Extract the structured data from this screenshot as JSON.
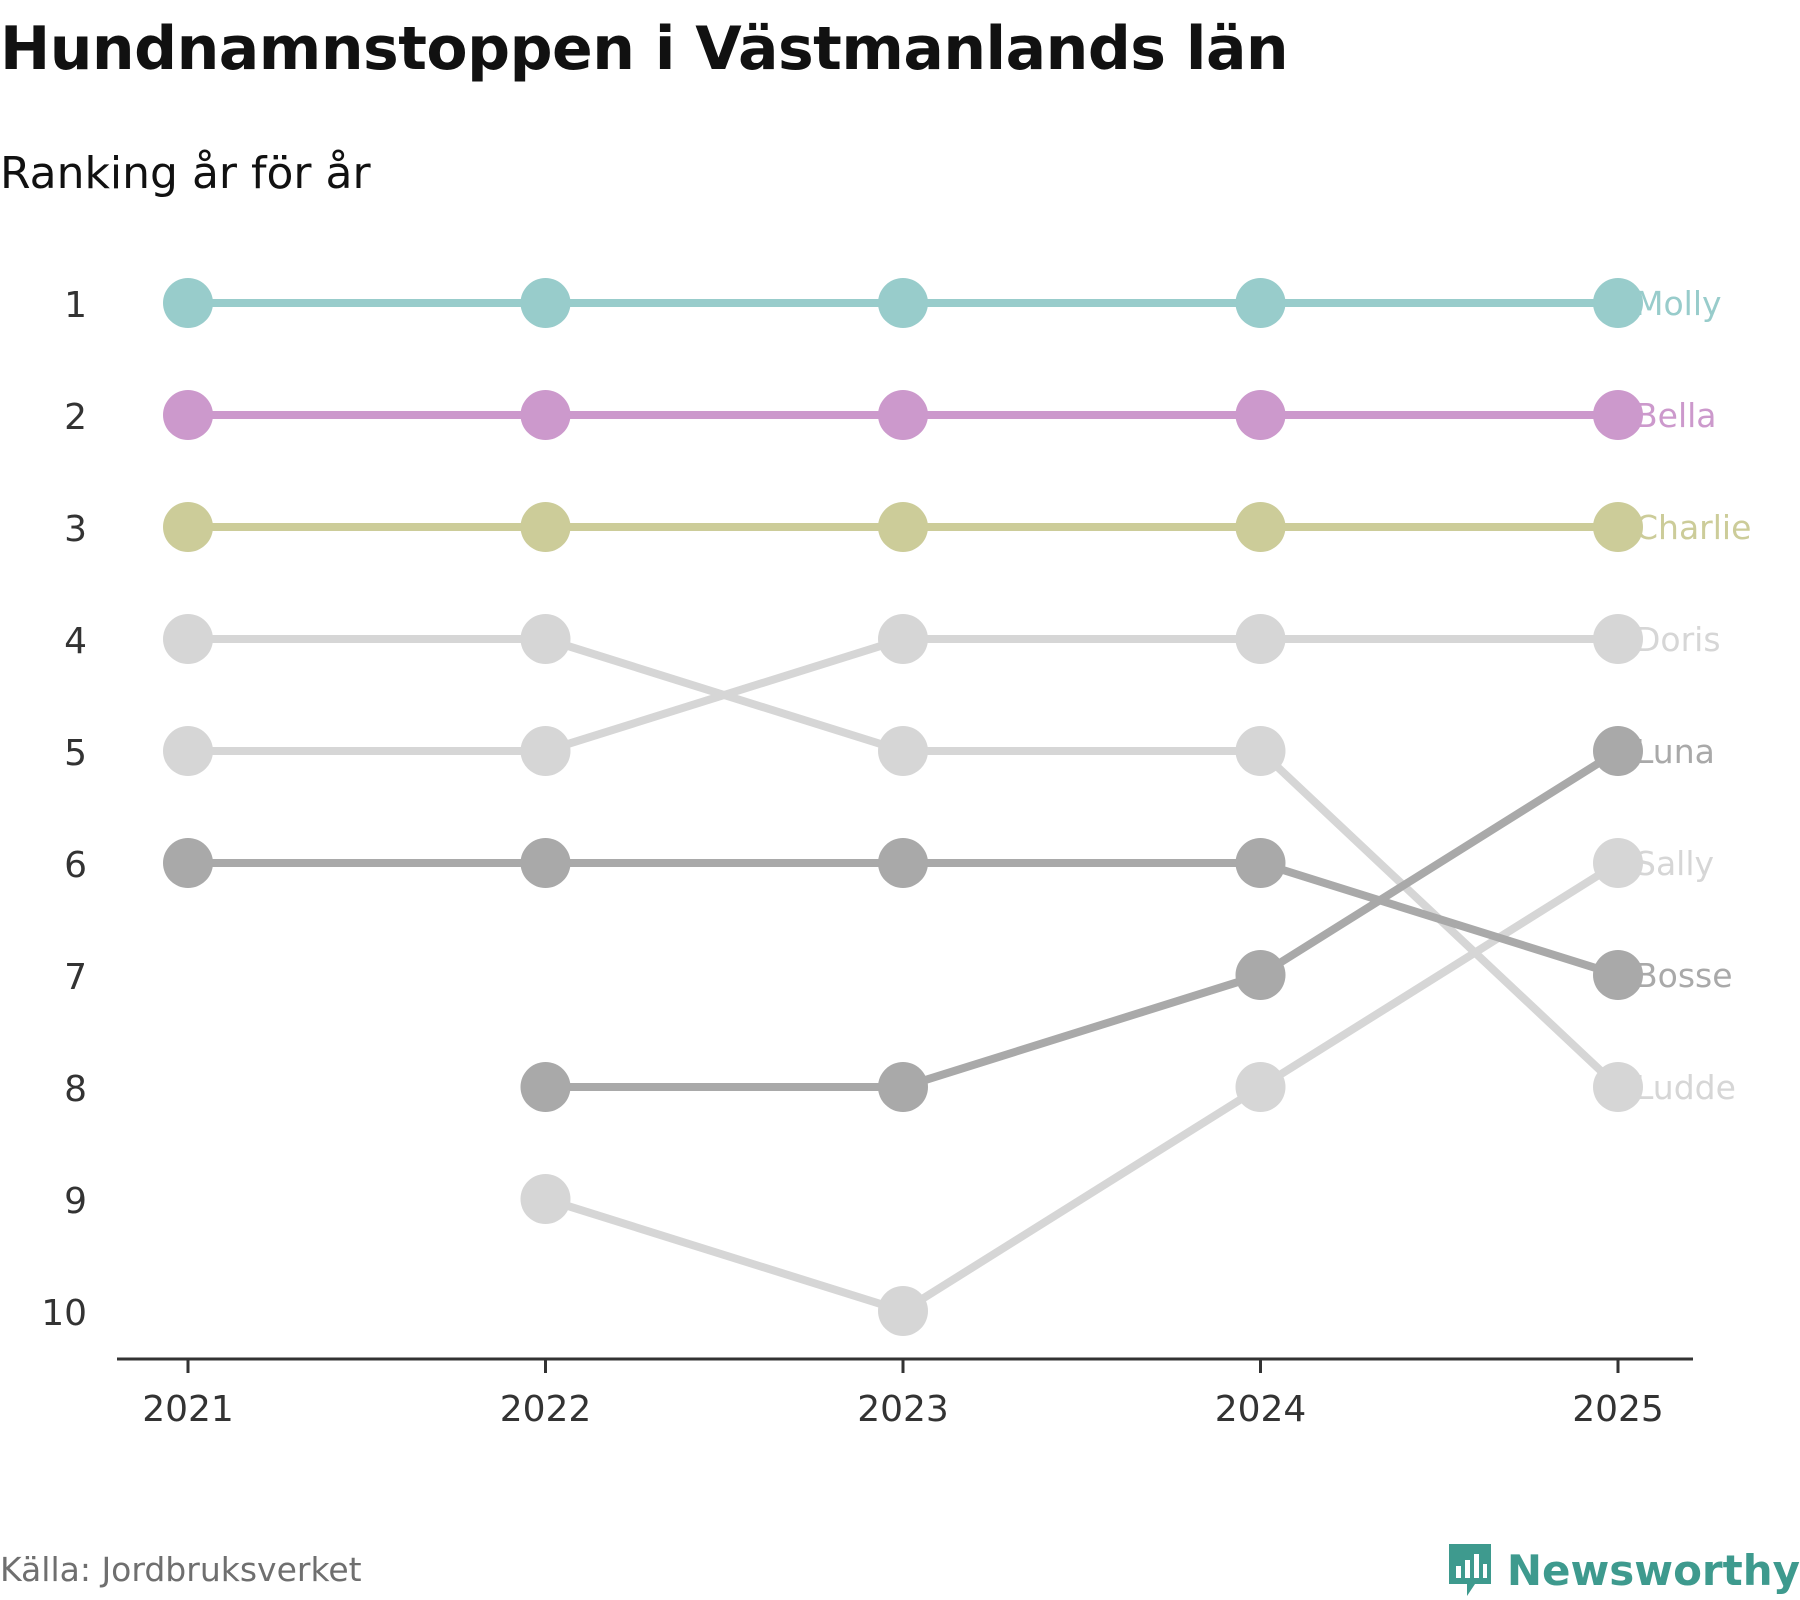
{
  "chart_data": {
    "type": "line",
    "title": "Hundnamnstoppen i Västmanlands län",
    "subtitle": "Ranking år för år",
    "x": [
      "2021",
      "2022",
      "2023",
      "2024",
      "2025"
    ],
    "y_ticks": [
      "1",
      "2",
      "3",
      "4",
      "5",
      "6",
      "7",
      "8",
      "9",
      "10"
    ],
    "ylim": [
      1,
      10
    ],
    "y_inverted": true,
    "series": [
      {
        "name": "Molly",
        "color": "#98cccb",
        "values": [
          1,
          1,
          1,
          1,
          1
        ]
      },
      {
        "name": "Bella",
        "color": "#cc99cc",
        "values": [
          2,
          2,
          2,
          2,
          2
        ]
      },
      {
        "name": "Charlie",
        "color": "#cccc99",
        "values": [
          3,
          3,
          3,
          3,
          3
        ]
      },
      {
        "name": "Doris",
        "color": "#d6d6d6",
        "values": [
          5,
          5,
          4,
          4,
          4
        ]
      },
      {
        "name": "Luna",
        "color": "#a9a9a9",
        "values": [
          null,
          8,
          8,
          7,
          5
        ]
      },
      {
        "name": "Sally",
        "color": "#d6d6d6",
        "values": [
          null,
          9,
          10,
          8,
          6
        ]
      },
      {
        "name": "Bosse",
        "color": "#a9a9a9",
        "values": [
          6,
          6,
          6,
          6,
          7
        ]
      },
      {
        "name": "Ludde",
        "color": "#d6d6d6",
        "values": [
          4,
          4,
          5,
          5,
          8
        ]
      }
    ]
  },
  "footer": {
    "source": "Källa: Jordbruksverket",
    "brand": "Newsworthy"
  },
  "colors": {
    "axis": "#333333",
    "brand": "#3e9a8e"
  }
}
